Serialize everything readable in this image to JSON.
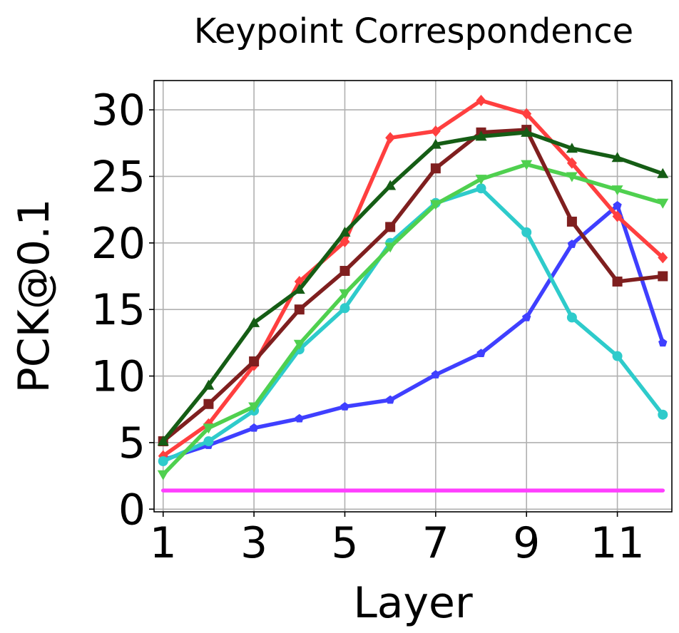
{
  "chart_data": {
    "type": "line",
    "title": "Keypoint Correspondence",
    "xlabel": "Layer",
    "ylabel": "PCK@0.1",
    "xlim": [
      0.8,
      12.2
    ],
    "ylim": [
      -0.2,
      32.2
    ],
    "xticks": [
      1,
      3,
      5,
      7,
      9,
      11
    ],
    "yticks": [
      0,
      5,
      10,
      15,
      20,
      25,
      30
    ],
    "grid": true,
    "x": [
      1,
      2,
      3,
      4,
      5,
      6,
      7,
      8,
      9,
      10,
      11,
      12
    ],
    "series": [
      {
        "color": "#3f3fff",
        "marker": "pentagon",
        "values": [
          3.7,
          4.8,
          6.1,
          6.8,
          7.7,
          8.2,
          10.1,
          11.7,
          14.4,
          19.9,
          22.8,
          12.5
        ]
      },
      {
        "color": "#ff3f3f",
        "marker": "diamond",
        "values": [
          4.0,
          6.4,
          10.8,
          17.1,
          20.1,
          27.9,
          28.4,
          30.7,
          29.7,
          26.0,
          22.0,
          18.9
        ]
      },
      {
        "color": "#2ecbcb",
        "marker": "circle",
        "values": [
          3.6,
          5.1,
          7.4,
          12.0,
          15.1,
          20.0,
          23.0,
          24.1,
          20.8,
          14.4,
          11.5,
          7.1
        ]
      },
      {
        "color": "#4fd04f",
        "marker": "triangle-down",
        "values": [
          2.6,
          6.1,
          7.7,
          12.4,
          16.2,
          19.7,
          22.9,
          24.8,
          25.9,
          25.0,
          24.0,
          23.0
        ]
      },
      {
        "color": "#7f1f1f",
        "marker": "square",
        "values": [
          5.1,
          7.9,
          11.1,
          15.0,
          17.9,
          21.2,
          25.6,
          28.3,
          28.5,
          21.6,
          17.1,
          17.5
        ]
      },
      {
        "color": "#155d15",
        "marker": "triangle-up",
        "values": [
          5.1,
          9.3,
          14.0,
          16.5,
          20.8,
          24.3,
          27.4,
          28.0,
          28.3,
          27.1,
          26.4,
          25.2
        ]
      },
      {
        "color": "#ff3fff",
        "marker": "none",
        "values": [
          1.4,
          1.4,
          1.4,
          1.4,
          1.4,
          1.4,
          1.4,
          1.4,
          1.4,
          1.4,
          1.4,
          1.4
        ]
      }
    ]
  }
}
